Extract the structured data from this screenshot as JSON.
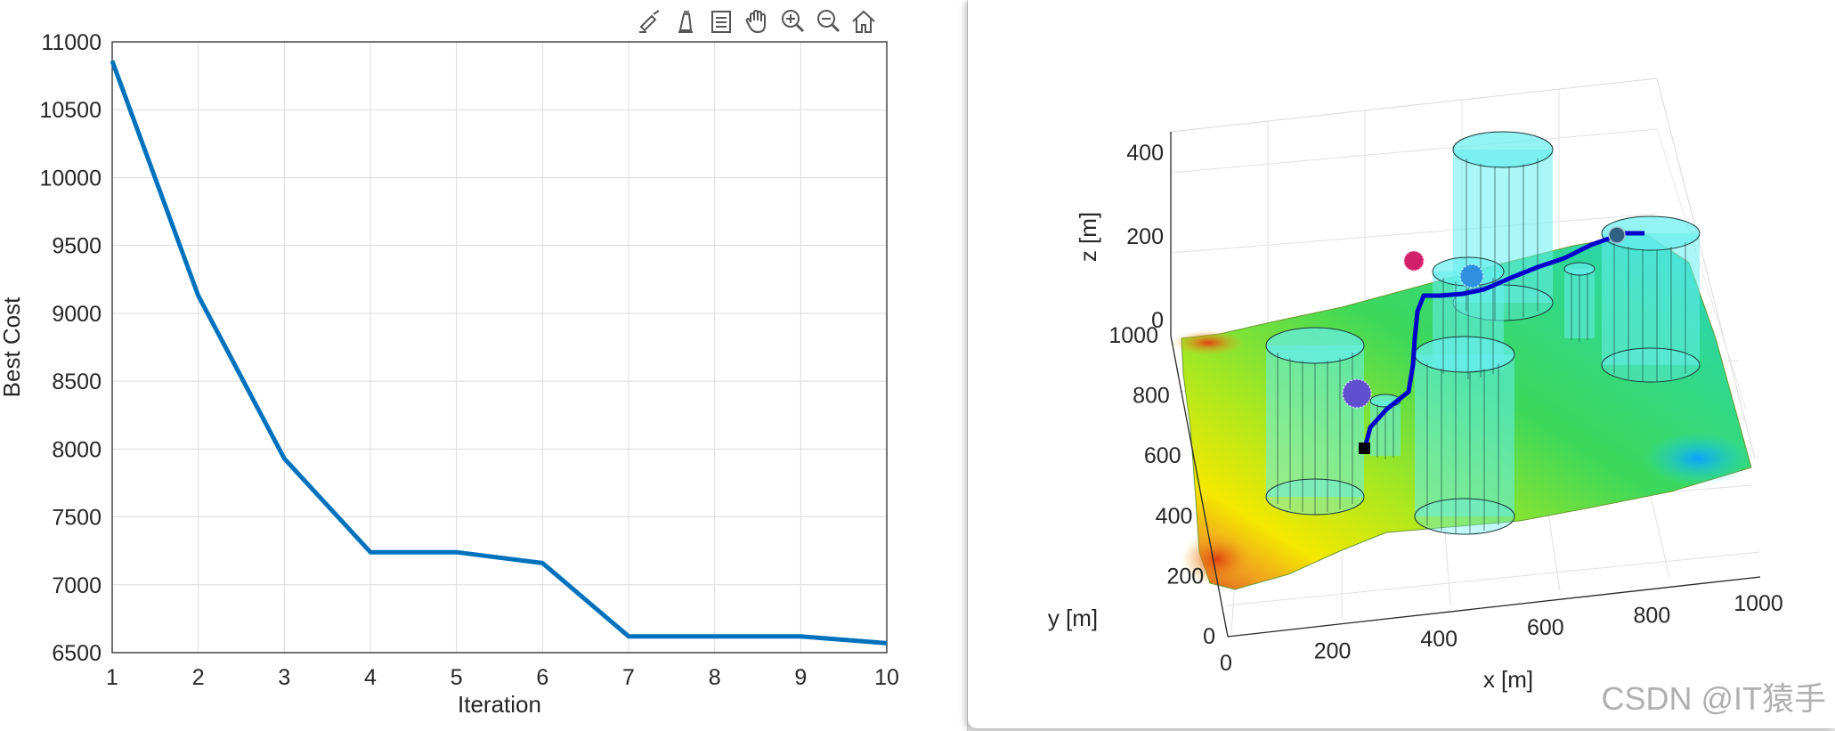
{
  "toolbar": {
    "icons": [
      "brush-icon",
      "data-tips-icon",
      "legend-icon",
      "pan-hand-icon",
      "zoom-in-icon",
      "zoom-out-icon",
      "home-icon"
    ]
  },
  "colors": {
    "line": "#0072BD",
    "grid": "#dcdcdc",
    "axis": "#262626",
    "path": "#0000cc",
    "cylinder": "#66eeee"
  },
  "chart_data": [
    {
      "type": "line",
      "title": "",
      "xlabel": "Iteration",
      "ylabel": "Best Cost",
      "xlim": [
        1,
        10
      ],
      "ylim": [
        6500,
        11000
      ],
      "xticks": [
        "1",
        "2",
        "3",
        "4",
        "5",
        "6",
        "7",
        "8",
        "9",
        "10"
      ],
      "yticks": [
        "6500",
        "7000",
        "7500",
        "8000",
        "8500",
        "9000",
        "9500",
        "10000",
        "10500",
        "11000"
      ],
      "grid": true,
      "series": [
        {
          "x": [
            1,
            2,
            3,
            4,
            5,
            6,
            7,
            8,
            9,
            10
          ],
          "values": [
            10860,
            9130,
            7930,
            7240,
            7240,
            7160,
            6620,
            6620,
            6620,
            6570
          ]
        }
      ]
    },
    {
      "type": "surface-3d",
      "xlabel": "x [m]",
      "ylabel": "y [m]",
      "zlabel": "z [m]",
      "xlim": [
        0,
        1000
      ],
      "ylim": [
        0,
        1000
      ],
      "zlim": [
        0,
        400
      ],
      "xticks": [
        "0",
        "200",
        "400",
        "600",
        "800",
        "1000"
      ],
      "yticks": [
        "0",
        "200",
        "400",
        "600",
        "800",
        "1000"
      ],
      "zticks": [
        "0",
        "200",
        "400"
      ],
      "grid": true,
      "colormap": "jet",
      "obstacles": "cylinders",
      "markers": [
        "start-square",
        "spheres"
      ],
      "path_color": "blue"
    }
  ],
  "watermark": "CSDN @IT猿手"
}
